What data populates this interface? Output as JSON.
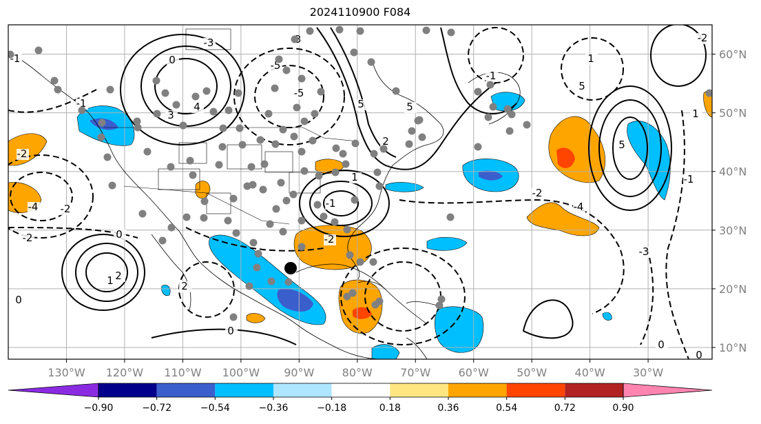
{
  "title": "2024110900 F084",
  "map": {
    "lon_range": [
      -140,
      -19
    ],
    "lat_range": [
      8,
      65
    ],
    "lat_labels": [
      "60°N",
      "50°N",
      "40°N",
      "30°N",
      "20°N",
      "10°N"
    ],
    "lon_labels": [
      "130°W",
      "120°W",
      "110°W",
      "100°W",
      "90°W",
      "80°W",
      "70°W",
      "60°W",
      "50°W",
      "40°W",
      "30°W"
    ],
    "contour_labels": [
      "-3",
      "0",
      "4",
      "3",
      "-3",
      "-5",
      "-5",
      "5",
      "2",
      "5",
      "1",
      "-1",
      "-2",
      "1",
      "2",
      "0",
      "-2",
      "0",
      "2",
      "5",
      "-2",
      "-4",
      "-3",
      "-2",
      "1",
      "-1",
      "0",
      "1",
      "0",
      "-1",
      "0",
      "-1",
      "-4",
      "5",
      "-2",
      "-2",
      "-1"
    ],
    "colors": {
      "ocean": "#ffffff",
      "grid": "#b0b0b0",
      "land_outline": "#000000",
      "station_dot": "#808080"
    }
  },
  "colorbar": {
    "ticks": [
      "−0.90",
      "−0.72",
      "−0.54",
      "−0.36",
      "−0.18",
      "0.18",
      "0.36",
      "0.54",
      "0.72",
      "0.90"
    ],
    "colors": [
      "#8a2be2",
      "#00008b",
      "#3a5fcd",
      "#00bfff",
      "#aee6ff",
      "#ffffff",
      "#ffe680",
      "#ffa500",
      "#ff4500",
      "#b22222",
      "#ff85b0"
    ]
  }
}
